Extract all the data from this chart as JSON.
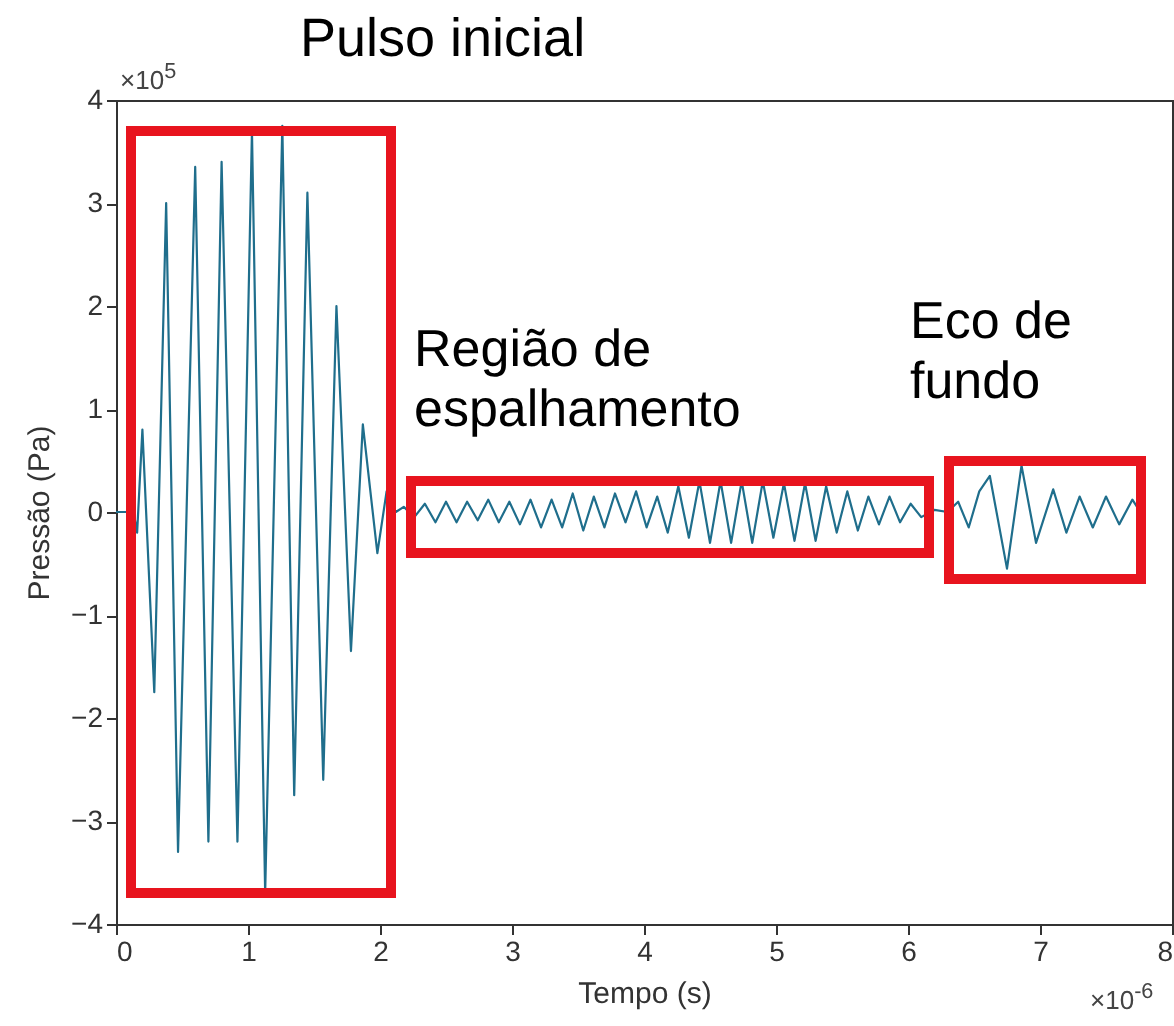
{
  "chart_data": {
    "type": "line",
    "xlabel": "Tempo (s)",
    "ylabel": "Pressão (Pa)",
    "xlim": [
      0,
      8
    ],
    "xticks": [
      0,
      1,
      2,
      3,
      4,
      5,
      6,
      7,
      8
    ],
    "ylim": [
      -4,
      4
    ],
    "yticks": [
      -4,
      -3,
      -2,
      -1,
      0,
      1,
      2,
      3,
      4
    ],
    "x": [
      0,
      0.08,
      0.12,
      0.16,
      0.2,
      0.29,
      0.38,
      0.47,
      0.6,
      0.7,
      0.8,
      0.92,
      1.03,
      1.13,
      1.26,
      1.35,
      1.45,
      1.57,
      1.67,
      1.78,
      1.87,
      1.98,
      2.05,
      2.12,
      2.18,
      2.26,
      2.34,
      2.42,
      2.5,
      2.58,
      2.66,
      2.74,
      2.82,
      2.9,
      2.98,
      3.06,
      3.14,
      3.22,
      3.3,
      3.38,
      3.46,
      3.54,
      3.62,
      3.7,
      3.78,
      3.86,
      3.94,
      4.02,
      4.1,
      4.18,
      4.26,
      4.34,
      4.42,
      4.5,
      4.58,
      4.66,
      4.74,
      4.82,
      4.9,
      4.98,
      5.06,
      5.14,
      5.22,
      5.3,
      5.38,
      5.46,
      5.54,
      5.62,
      5.7,
      5.78,
      5.86,
      5.94,
      6.02,
      6.1,
      6.2,
      6.3,
      6.38,
      6.46,
      6.54,
      6.62,
      6.75,
      6.86,
      6.97,
      7.1,
      7.2,
      7.3,
      7.4,
      7.5,
      7.6,
      7.7,
      7.76
    ],
    "series": [
      {
        "color": "#1f6e8c",
        "values": [
          0,
          0,
          0.1,
          -0.2,
          0.8,
          -1.75,
          3.0,
          -3.3,
          3.35,
          -3.2,
          3.4,
          -3.2,
          3.7,
          -3.7,
          3.75,
          -2.75,
          3.1,
          -2.6,
          2.0,
          -1.35,
          0.85,
          -0.4,
          0.2,
          0,
          0.05,
          -0.05,
          0.08,
          -0.1,
          0.1,
          -0.1,
          0.1,
          -0.08,
          0.12,
          -0.1,
          0.1,
          -0.12,
          0.12,
          -0.15,
          0.12,
          -0.15,
          0.18,
          -0.18,
          0.15,
          -0.15,
          0.18,
          -0.1,
          0.2,
          -0.15,
          0.15,
          -0.2,
          0.25,
          -0.25,
          0.3,
          -0.3,
          0.3,
          -0.3,
          0.3,
          -0.3,
          0.3,
          -0.25,
          0.28,
          -0.28,
          0.28,
          -0.28,
          0.25,
          -0.2,
          0.2,
          -0.18,
          0.15,
          -0.12,
          0.15,
          -0.1,
          0.08,
          -0.05,
          0.02,
          0,
          0.1,
          -0.15,
          0.2,
          0.35,
          -0.55,
          0.45,
          -0.3,
          0.22,
          -0.2,
          0.15,
          -0.15,
          0.15,
          -0.12,
          0.12,
          0
        ]
      }
    ],
    "annotations": [
      "Pulso inicial",
      "Região de espalhamento",
      "Eco de fundo",
      "×10$^{5}$",
      "×10$^{-6}$"
    ]
  }
}
